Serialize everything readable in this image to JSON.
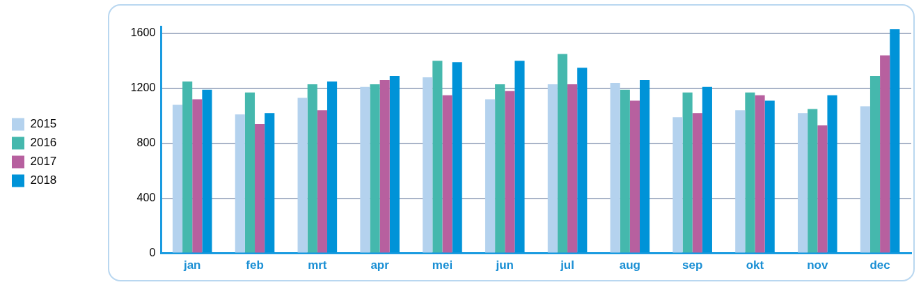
{
  "chart_data": {
    "type": "bar",
    "categories": [
      "jan",
      "feb",
      "mrt",
      "apr",
      "mei",
      "jun",
      "jul",
      "aug",
      "sep",
      "okt",
      "nov",
      "dec"
    ],
    "series": [
      {
        "name": "2015",
        "color": "#b4d2ee",
        "values": [
          1080,
          1010,
          1130,
          1210,
          1280,
          1120,
          1230,
          1240,
          990,
          1040,
          1020,
          1070
        ]
      },
      {
        "name": "2016",
        "color": "#45b8ad",
        "values": [
          1250,
          1170,
          1230,
          1230,
          1400,
          1230,
          1450,
          1190,
          1170,
          1170,
          1050,
          1290
        ]
      },
      {
        "name": "2017",
        "color": "#b7609f",
        "values": [
          1120,
          940,
          1040,
          1260,
          1150,
          1180,
          1230,
          1110,
          1020,
          1150,
          930,
          1440
        ]
      },
      {
        "name": "2018",
        "color": "#0093d8",
        "values": [
          1190,
          1020,
          1250,
          1290,
          1390,
          1400,
          1350,
          1260,
          1210,
          1110,
          1150,
          1630
        ]
      }
    ],
    "ylim": [
      0,
      1650
    ],
    "yticks": [
      0,
      400,
      800,
      1200,
      1600
    ],
    "grid": "y",
    "legend": "left"
  }
}
